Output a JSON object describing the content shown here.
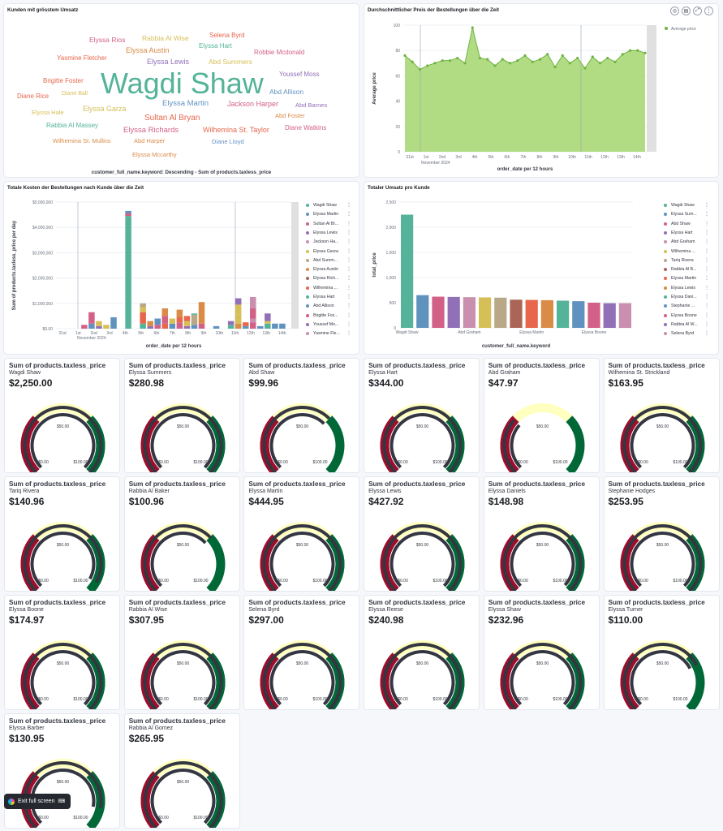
{
  "wordcloud": {
    "title": "Kunden mit grösstem Umsatz",
    "footer": "customer_full_name.keyword: Descending - Sum of products.taxless_price",
    "words": [
      {
        "text": "Wagdi Shaw",
        "color": "#54b399"
      },
      {
        "text": "Elyssa Rios",
        "color": "#d36086"
      },
      {
        "text": "Rabbia Al Wise",
        "color": "#d6bf57"
      },
      {
        "text": "Selena Byrd",
        "color": "#e7664c"
      },
      {
        "text": "Elyssa Austin",
        "color": "#da8b45"
      },
      {
        "text": "Elyssa Hart",
        "color": "#54b399"
      },
      {
        "text": "Robbie Mcdonald",
        "color": "#d36086"
      },
      {
        "text": "Yasmine Fletcher",
        "color": "#e7664c"
      },
      {
        "text": "Elyssa Lewis",
        "color": "#9170b8"
      },
      {
        "text": "Abd Summers",
        "color": "#d6bf57"
      },
      {
        "text": "Youssef Moss",
        "color": "#9170b8"
      },
      {
        "text": "Brigitte Foster",
        "color": "#e7664c"
      },
      {
        "text": "Abd Allison",
        "color": "#6092c0"
      },
      {
        "text": "Diane Rice",
        "color": "#e7664c"
      },
      {
        "text": "Diane Ball",
        "color": "#d6bf57"
      },
      {
        "text": "Elyssa Martin",
        "color": "#6092c0"
      },
      {
        "text": "Jackson Harper",
        "color": "#d36086"
      },
      {
        "text": "Abd Barnes",
        "color": "#9170b8"
      },
      {
        "text": "Elyssa Hale",
        "color": "#d6bf57"
      },
      {
        "text": "Elyssa Garza",
        "color": "#d6bf57"
      },
      {
        "text": "Abd Foster",
        "color": "#da8b45"
      },
      {
        "text": "Sultan Al Bryan",
        "color": "#e7664c"
      },
      {
        "text": "Rabbia Al Massey",
        "color": "#54b399"
      },
      {
        "text": "Elyssa Richards",
        "color": "#d36086"
      },
      {
        "text": "Wilhemina St. Taylor",
        "color": "#e7664c"
      },
      {
        "text": "Diane Watkins",
        "color": "#d36086"
      },
      {
        "text": "Wilhemina St. Mullins",
        "color": "#da8b45"
      },
      {
        "text": "Abd Harper",
        "color": "#da8b45"
      },
      {
        "text": "Diane Lloyd",
        "color": "#6092c0"
      },
      {
        "text": "Elyssa Mccarthy",
        "color": "#da8b45"
      }
    ]
  },
  "avg_price_chart": {
    "title": "Durchschnittlicher Preis der Bestellungen über die Zeit",
    "chart_data": {
      "type": "area",
      "xlabel": "order_date per 12 hours",
      "ylabel": "Average price",
      "ylim": [
        0,
        100
      ],
      "y_ticks": [
        "0",
        "20",
        "40",
        "60",
        "80",
        "100"
      ],
      "x_ticks": [
        "31st",
        "1st",
        "2nd",
        "3rd",
        "4th",
        "5th",
        "6th",
        "7th",
        "8th",
        "9th",
        "10th",
        "11th",
        "12th",
        "13th",
        "14th"
      ],
      "x_sublabel": "November 2024",
      "series": [
        {
          "name": "Average price",
          "color": "#54b399",
          "values": [
            76,
            71,
            65,
            68,
            70,
            72,
            72,
            74,
            70,
            98,
            74,
            73,
            68,
            73,
            70,
            72,
            76,
            71,
            73,
            77,
            67,
            76,
            70,
            74,
            66,
            75,
            70,
            74,
            71,
            77,
            80,
            80,
            78
          ]
        }
      ],
      "legend_position": "top-right",
      "grid": true
    }
  },
  "total_cost_chart": {
    "title": "Totale Kosten der Bestellungen nach Kunde über die Zeit",
    "chart_data": {
      "type": "bar",
      "stacked": true,
      "xlabel": "order_date per 12 hours",
      "ylabel": "Sum of products.taxless_price per day",
      "ylim": [
        0,
        5000000
      ],
      "y_ticks": [
        "$0.00",
        "$1,000,000",
        "$2,000,000",
        "$3,000,000",
        "$4,000,000",
        "$5,000,000"
      ],
      "x_ticks": [
        "31st",
        "1st",
        "2nd",
        "3rd",
        "4th",
        "5th",
        "6th",
        "7th",
        "8th",
        "9th",
        "10th",
        "11th",
        "12th",
        "13th",
        "14th"
      ],
      "x_sublabel": "November 2024",
      "bars": [
        {
          "x": 2.0,
          "segs": [
            [
              0,
              150000,
              "#d36086"
            ]
          ]
        },
        {
          "x": 2.5,
          "segs": [
            [
              0,
              200000,
              "#6092c0"
            ],
            [
              200000,
              650000,
              "#d36086"
            ]
          ]
        },
        {
          "x": 3.0,
          "segs": [
            [
              0,
              100000,
              "#9170b8"
            ],
            [
              100000,
              300000,
              "#d6bf57"
            ]
          ]
        },
        {
          "x": 3.5,
          "segs": [
            [
              0,
              150000,
              "#d6bf57"
            ]
          ]
        },
        {
          "x": 4.0,
          "segs": [
            [
              0,
              450000,
              "#6092c0"
            ]
          ]
        },
        {
          "x": 5.0,
          "segs": [
            [
              0,
              4450000,
              "#54b399"
            ],
            [
              4450000,
              4550000,
              "#d36086"
            ],
            [
              4550000,
              4650000,
              "#6092c0"
            ]
          ]
        },
        {
          "x": 6.0,
          "segs": [
            [
              0,
              200000,
              "#54b399"
            ],
            [
              200000,
              650000,
              "#e7664c"
            ],
            [
              650000,
              850000,
              "#d6bf57"
            ],
            [
              850000,
              1000000,
              "#b9a888"
            ]
          ]
        },
        {
          "x": 6.5,
          "segs": [
            [
              0,
              100000,
              "#9170b8"
            ],
            [
              100000,
              300000,
              "#da8b45"
            ]
          ]
        },
        {
          "x": 7.0,
          "segs": [
            [
              0,
              150000,
              "#d36086"
            ],
            [
              150000,
              400000,
              "#6092c0"
            ]
          ]
        },
        {
          "x": 7.5,
          "segs": [
            [
              0,
              200000,
              "#e7664c"
            ],
            [
              200000,
              500000,
              "#d36086"
            ],
            [
              500000,
              800000,
              "#da8b45"
            ]
          ]
        },
        {
          "x": 8.0,
          "segs": [
            [
              0,
              200000,
              "#6092c0"
            ],
            [
              200000,
              400000,
              "#d6bf57"
            ]
          ]
        },
        {
          "x": 8.5,
          "segs": [
            [
              0,
              250000,
              "#d36086"
            ],
            [
              250000,
              450000,
              "#e7664c"
            ],
            [
              450000,
              750000,
              "#da8b45"
            ]
          ]
        },
        {
          "x": 9.0,
          "segs": [
            [
              0,
              100000,
              "#9170b8"
            ],
            [
              100000,
              300000,
              "#d6bf57"
            ],
            [
              300000,
              500000,
              "#e7664c"
            ]
          ]
        },
        {
          "x": 9.5,
          "segs": [
            [
              0,
              150000,
              "#6092c0"
            ],
            [
              150000,
              550000,
              "#b9a888"
            ],
            [
              550000,
              600000,
              "#54b399"
            ]
          ]
        },
        {
          "x": 10.0,
          "segs": [
            [
              0,
              200000,
              "#d36086"
            ],
            [
              200000,
              1050000,
              "#da8b45"
            ]
          ]
        },
        {
          "x": 11.0,
          "segs": [
            [
              0,
              100000,
              "#6092c0"
            ]
          ]
        },
        {
          "x": 12.0,
          "segs": [
            [
              0,
              150000,
              "#54b399"
            ],
            [
              150000,
              300000,
              "#9170b8"
            ]
          ]
        },
        {
          "x": 12.5,
          "segs": [
            [
              0,
              200000,
              "#da8b45"
            ],
            [
              200000,
              550000,
              "#d6bf57"
            ],
            [
              550000,
              950000,
              "#d6bf57"
            ],
            [
              950000,
              1200000,
              "#9170b8"
            ]
          ]
        },
        {
          "x": 13.0,
          "segs": [
            [
              0,
              100000,
              "#6092c0"
            ],
            [
              100000,
              250000,
              "#e7664c"
            ]
          ]
        },
        {
          "x": 13.5,
          "segs": [
            [
              0,
              250000,
              "#d36086"
            ],
            [
              250000,
              400000,
              "#ca8eae"
            ],
            [
              400000,
              800000,
              "#d36086"
            ],
            [
              800000,
              1250000,
              "#ca8eae"
            ]
          ]
        },
        {
          "x": 14.0,
          "segs": [
            [
              0,
              100000,
              "#6092c0"
            ]
          ]
        },
        {
          "x": 14.5,
          "segs": [
            [
              0,
              200000,
              "#54b399"
            ],
            [
              200000,
              300000,
              "#d6bf57"
            ],
            [
              300000,
              600000,
              "#9170b8"
            ]
          ]
        },
        {
          "x": 15.0,
          "segs": [
            [
              0,
              200000,
              "#6092c0"
            ]
          ]
        },
        {
          "x": 15.5,
          "segs": [
            [
              0,
              200000,
              "#6092c0"
            ]
          ]
        }
      ],
      "legend_position": "right",
      "grid": true
    },
    "legend": [
      {
        "name": "Wagdi Shaw",
        "color": "#54b399"
      },
      {
        "name": "Elyssa Martin",
        "color": "#6092c0"
      },
      {
        "name": "Sultan Al Br...",
        "color": "#d36086"
      },
      {
        "name": "Elyssa Lewis",
        "color": "#9170b8"
      },
      {
        "name": "Jackson Ha...",
        "color": "#ca8eae"
      },
      {
        "name": "Elyssa Garza",
        "color": "#d6bf57"
      },
      {
        "name": "Abd Summ...",
        "color": "#b9a888"
      },
      {
        "name": "Elyssa Austin",
        "color": "#da8b45"
      },
      {
        "name": "Elyssa Rich...",
        "color": "#aa6556"
      },
      {
        "name": "Wilhemina ...",
        "color": "#e7664c"
      },
      {
        "name": "Elyssa Hart",
        "color": "#54b399"
      },
      {
        "name": "Abd Allison",
        "color": "#6092c0"
      },
      {
        "name": "Brigitte Fos...",
        "color": "#d36086"
      },
      {
        "name": "Youssef Mo...",
        "color": "#9170b8"
      },
      {
        "name": "Yasmine Fle...",
        "color": "#ca8eae"
      }
    ]
  },
  "revenue_chart": {
    "title": "Totaler Umsatz pro Kunde",
    "chart_data": {
      "type": "bar",
      "xlabel": "customer_full_name.keyword",
      "ylabel": "total_price",
      "ylim": [
        0,
        2500
      ],
      "y_ticks": [
        "0",
        "500",
        "1,000",
        "1,500",
        "2,000",
        "2,500"
      ],
      "categories": [
        "Wagdi Shaw",
        "Elyssa Summers",
        "Abd Shaw",
        "Elyssa Hart",
        "Abd Graham",
        "Wilhemina St. Strickland",
        "Tariq Rivera",
        "Rabbia Al Baker",
        "Elyssa Martin",
        "Elyssa Lewis",
        "Elyssa Daniels",
        "Stephanie Hodges",
        "Elyssa Boone",
        "Rabbia Al Wise",
        "Selena Byrd"
      ],
      "x_tick_labels": [
        "Wagdi Shaw",
        "Abd Graham",
        "Elyssa Martin",
        "Elyssa Boone"
      ],
      "values": [
        2250,
        650,
        620,
        615,
        610,
        605,
        600,
        560,
        555,
        550,
        540,
        530,
        500,
        490,
        490
      ],
      "colors": [
        "#54b399",
        "#6092c0",
        "#d36086",
        "#9170b8",
        "#ca8eae",
        "#d6bf57",
        "#b9a888",
        "#aa6556",
        "#e7664c",
        "#da8b45",
        "#54b399",
        "#6092c0",
        "#d36086",
        "#9170b8",
        "#ca8eae"
      ],
      "legend_position": "right",
      "grid": true
    },
    "legend": [
      {
        "name": "Wagdi Shaw",
        "color": "#54b399"
      },
      {
        "name": "Elyssa Sum...",
        "color": "#6092c0"
      },
      {
        "name": "Abd Shaw",
        "color": "#d36086"
      },
      {
        "name": "Elyssa Hart",
        "color": "#9170b8"
      },
      {
        "name": "Abd Graham",
        "color": "#ca8eae"
      },
      {
        "name": "Wilhemina ...",
        "color": "#d6bf57"
      },
      {
        "name": "Tariq Rivera",
        "color": "#b9a888"
      },
      {
        "name": "Rabbia Al B...",
        "color": "#aa6556"
      },
      {
        "name": "Elyssa Martin",
        "color": "#e7664c"
      },
      {
        "name": "Elyssa Lewis",
        "color": "#da8b45"
      },
      {
        "name": "Elyssa Dani...",
        "color": "#54b399"
      },
      {
        "name": "Stephanie ...",
        "color": "#6092c0"
      },
      {
        "name": "Elyssa Boone",
        "color": "#d36086"
      },
      {
        "name": "Rabbia Al W...",
        "color": "#9170b8"
      },
      {
        "name": "Selena Byrd",
        "color": "#ca8eae"
      }
    ]
  },
  "gauges": {
    "metric_label": "Sum of products.taxless_price",
    "tick_labels": [
      "$0.00",
      "$50.00",
      "$100.00"
    ],
    "range_max": 150,
    "colors": {
      "low": "#9e0d2b",
      "mid": "#ffffc0",
      "high": "#006837",
      "track": "#343741"
    },
    "items": [
      {
        "name": "Wagdi Shaw",
        "value": "$2,250.00",
        "amount": 2250
      },
      {
        "name": "Elyssa Summers",
        "value": "$280.98",
        "amount": 280.98
      },
      {
        "name": "Abd Shaw",
        "value": "$99.96",
        "amount": 99.96
      },
      {
        "name": "Elyssa Hart",
        "value": "$344.00",
        "amount": 344.0
      },
      {
        "name": "Abd Graham",
        "value": "$47.97",
        "amount": 47.97
      },
      {
        "name": "Wilhemina St. Strickland",
        "value": "$163.95",
        "amount": 163.95
      },
      {
        "name": "Tariq Rivera",
        "value": "$140.96",
        "amount": 140.96
      },
      {
        "name": "Rabbia Al Baker",
        "value": "$100.96",
        "amount": 100.96
      },
      {
        "name": "Elyssa Martin",
        "value": "$444.95",
        "amount": 444.95
      },
      {
        "name": "Elyssa Lewis",
        "value": "$427.92",
        "amount": 427.92
      },
      {
        "name": "Elyssa Daniels",
        "value": "$148.98",
        "amount": 148.98
      },
      {
        "name": "Stephanie Hodges",
        "value": "$253.95",
        "amount": 253.95
      },
      {
        "name": "Elyssa Boone",
        "value": "$174.97",
        "amount": 174.97
      },
      {
        "name": "Rabbia Al Wise",
        "value": "$307.95",
        "amount": 307.95
      },
      {
        "name": "Selena Byrd",
        "value": "$297.00",
        "amount": 297.0
      },
      {
        "name": "Elyssa Reese",
        "value": "$240.98",
        "amount": 240.98
      },
      {
        "name": "Elyssa Shaw",
        "value": "$232.96",
        "amount": 232.96
      },
      {
        "name": "Elyssa Turner",
        "value": "$110.00",
        "amount": 110.0
      },
      {
        "name": "Elyssa Barber",
        "value": "$130.95",
        "amount": 130.95
      },
      {
        "name": "Rabbia Al Gomez",
        "value": "$265.95",
        "amount": 265.95
      }
    ]
  },
  "exit_button": {
    "label": "Exit full screen"
  }
}
